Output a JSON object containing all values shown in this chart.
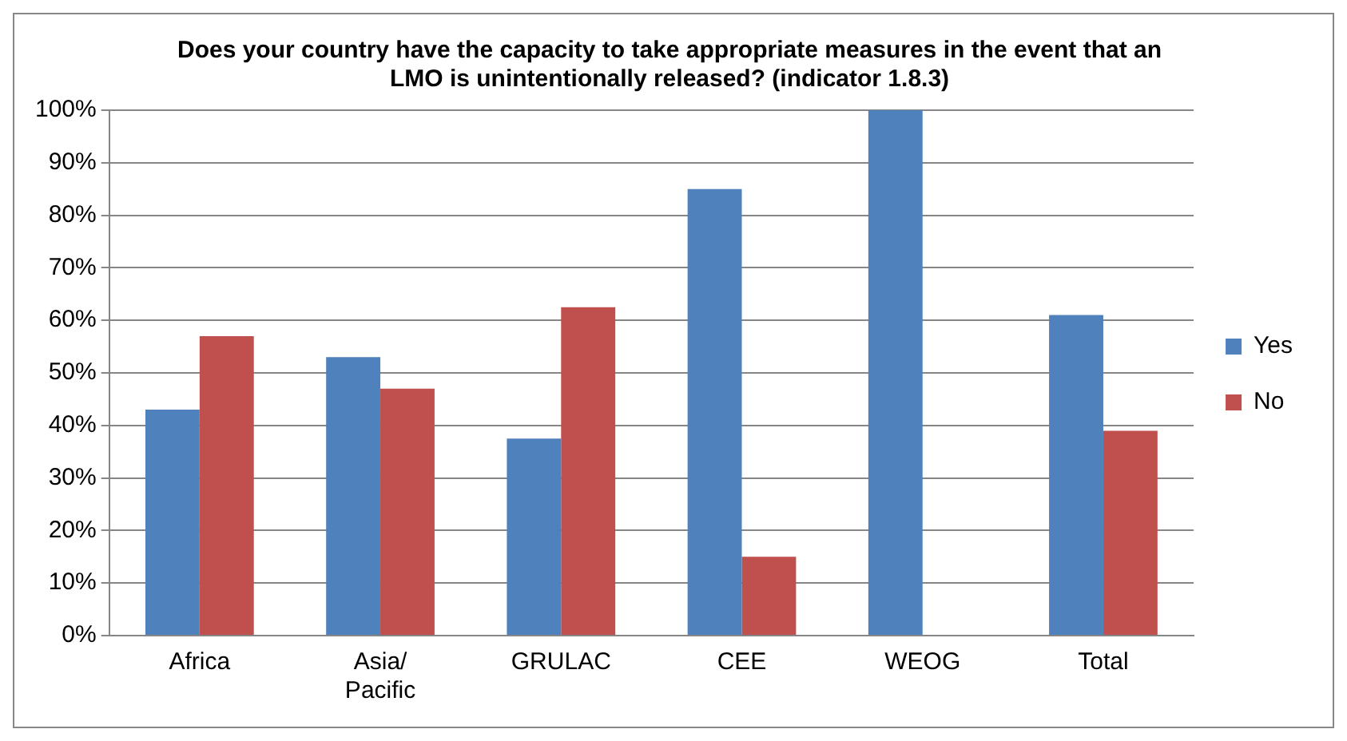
{
  "chart_data": {
    "type": "bar",
    "title": "Does your country have the capacity to take appropriate measures in the event that an LMO is unintentionally released? (indicator 1.8.3)",
    "categories": [
      "Africa",
      "Asia/ Pacific",
      "GRULAC",
      "CEE",
      "WEOG",
      "Total"
    ],
    "series": [
      {
        "name": "Yes",
        "color": "#4f81bd",
        "values": [
          43,
          53,
          37.5,
          85,
          100,
          61
        ]
      },
      {
        "name": "No",
        "color": "#c0504d",
        "values": [
          57,
          47,
          62.5,
          15,
          0,
          39
        ]
      }
    ],
    "ylim": [
      0,
      100
    ],
    "yticks": [
      {
        "value": 0,
        "label": "0%"
      },
      {
        "value": 10,
        "label": "10%"
      },
      {
        "value": 20,
        "label": "20%"
      },
      {
        "value": 30,
        "label": "30%"
      },
      {
        "value": 40,
        "label": "40%"
      },
      {
        "value": 50,
        "label": "50%"
      },
      {
        "value": 60,
        "label": "60%"
      },
      {
        "value": 70,
        "label": "70%"
      },
      {
        "value": 80,
        "label": "80%"
      },
      {
        "value": 90,
        "label": "90%"
      },
      {
        "value": 100,
        "label": "100%"
      }
    ],
    "grid": "y",
    "legend": "right"
  }
}
